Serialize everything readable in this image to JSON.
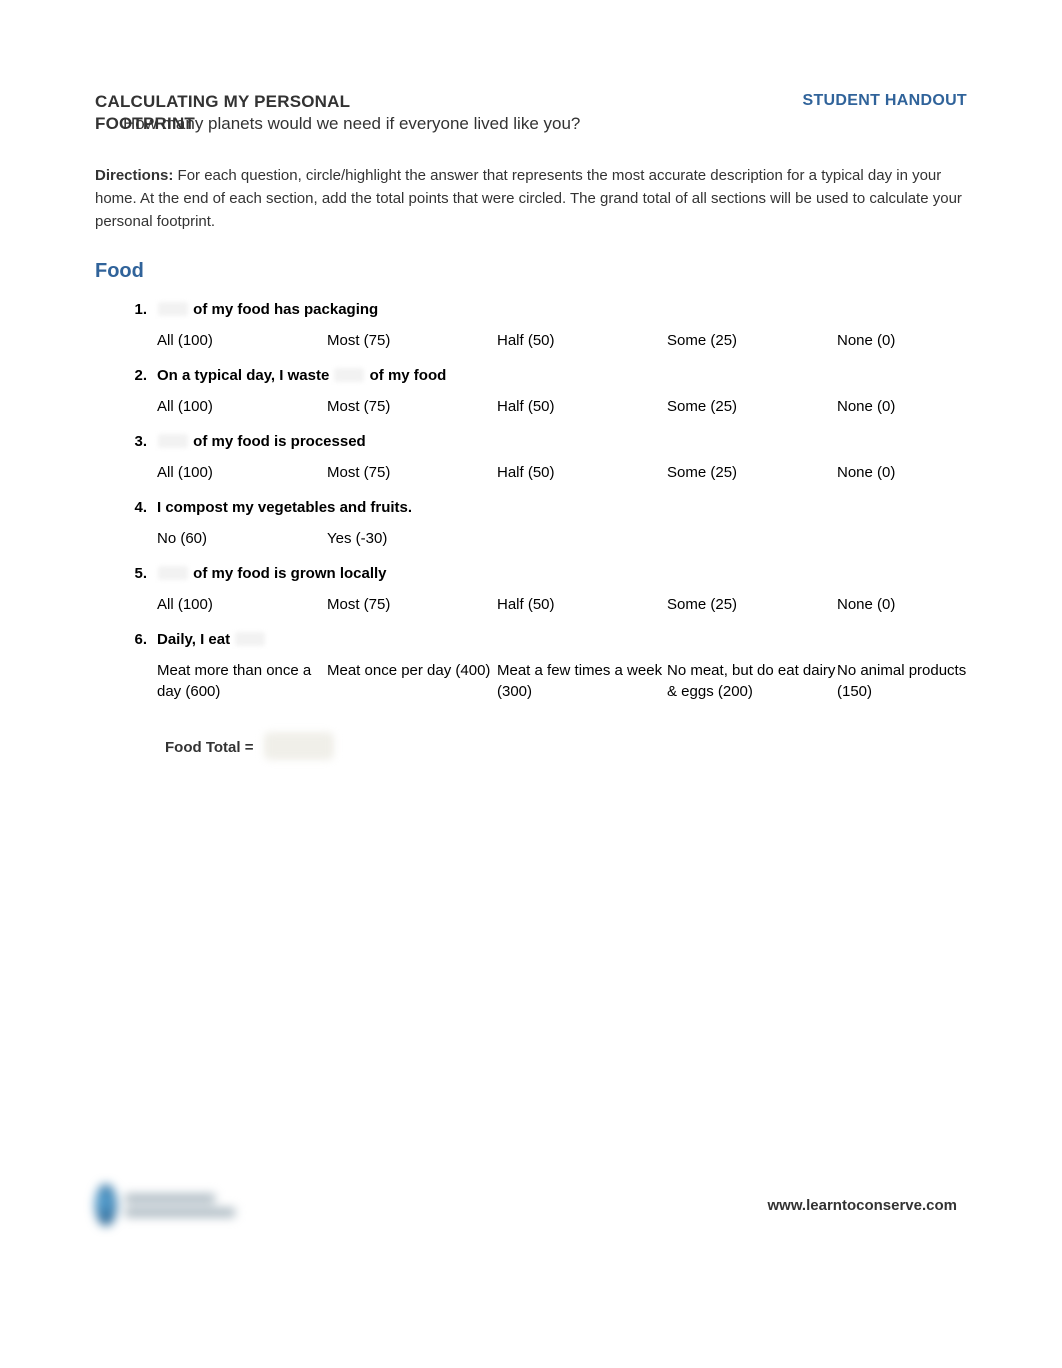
{
  "header": {
    "title": "CALCULATING MY PERSONAL",
    "handout": "STUDENT HANDOUT",
    "subtitle_prefix": "FOOTPRINT",
    "subtitle_rest": "How many planets would we need if everyone lived like you?"
  },
  "directions_label": "Directions:",
  "directions_text": " For each question, circle/highlight the answer that represents the most accurate description for a typical day in your home. At the end of each section, add the total points that were circled. The grand total of all sections will be used to calculate your personal footprint.",
  "section": {
    "title": "Food",
    "questions": [
      {
        "num": "1.",
        "pre": "",
        "has_blank_before": true,
        "post": " of my food has packaging",
        "options": [
          "All (100)",
          "Most (75)",
          "Half (50)",
          "Some (25)",
          "None (0)"
        ]
      },
      {
        "num": "2.",
        "pre": "On a typical day, I waste ",
        "has_blank_mid": true,
        "post": " of my food",
        "options": [
          "All (100)",
          "Most (75)",
          "Half (50)",
          "Some (25)",
          "None (0)"
        ]
      },
      {
        "num": "3.",
        "pre": "",
        "has_blank_before": true,
        "post": " of my food is processed",
        "options": [
          "All (100)",
          "Most (75)",
          "Half (50)",
          "Some (25)",
          "None (0)"
        ]
      },
      {
        "num": "4.",
        "pre": "I compost my vegetables and fruits.",
        "has_blank_before": false,
        "post": "",
        "options": [
          "No (60)",
          "Yes (-30)"
        ]
      },
      {
        "num": "5.",
        "pre": "",
        "has_blank_before": true,
        "post": " of my food is grown locally",
        "options": [
          "All (100)",
          "Most (75)",
          "Half (50)",
          "Some (25)",
          "None (0)"
        ]
      },
      {
        "num": "6.",
        "pre": "Daily, I eat ",
        "has_blank_mid": true,
        "post": "",
        "options": [
          "Meat more than once a day (600)",
          "Meat once per day (400)",
          "Meat a few times a week (300)",
          "No meat, but do eat dairy & eggs (200)",
          "No animal products (150)"
        ]
      }
    ],
    "total_label": "Food Total ="
  },
  "footer": {
    "url": "www.learntoconserve.com"
  },
  "colors": {
    "accent": "#30639a",
    "text": "#333333",
    "body_bg": "#ffffff"
  }
}
